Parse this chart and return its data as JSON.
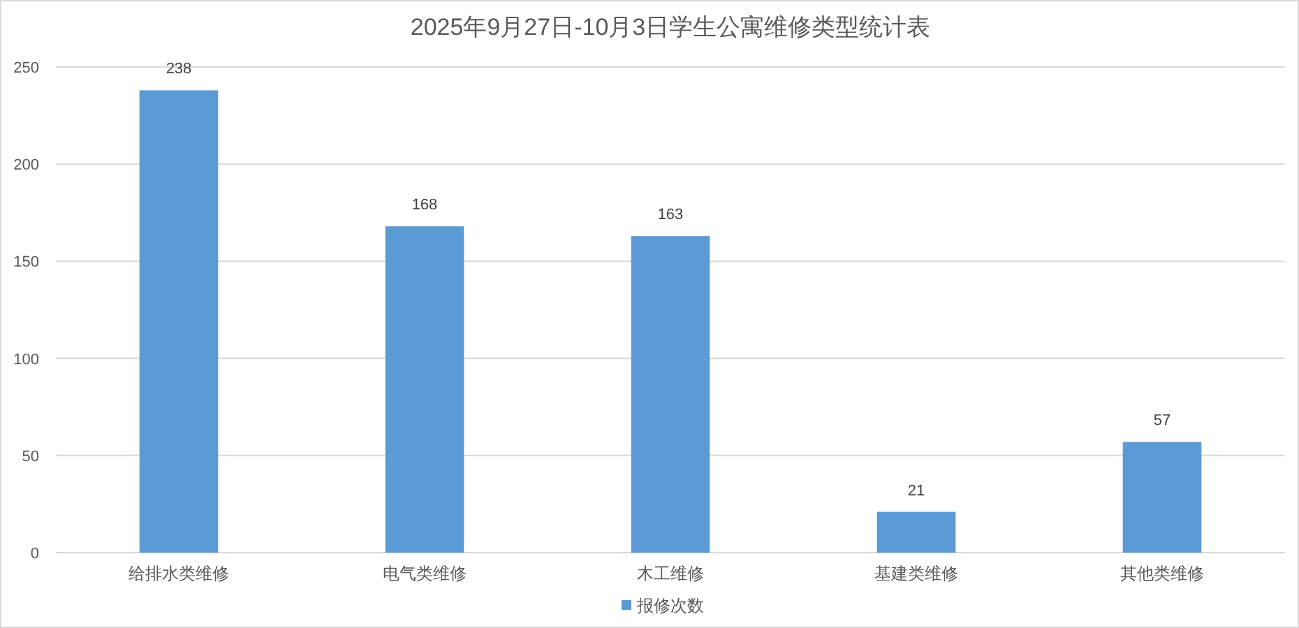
{
  "chart_data": {
    "type": "bar",
    "title": "2025年9月27日-10月3日学生公寓维修类型统计表",
    "categories": [
      "给排水类维修",
      "电气类维修",
      "木工维修",
      "基建类维修",
      "其他类维修"
    ],
    "series": [
      {
        "name": "报修次数",
        "color": "#5b9bd5",
        "values": [
          238,
          168,
          163,
          21,
          57
        ]
      }
    ],
    "ylim": [
      0,
      250
    ],
    "yticks": [
      0,
      50,
      100,
      150,
      200,
      250
    ],
    "grid": "y",
    "legend": "bottom",
    "data_labels": true
  }
}
